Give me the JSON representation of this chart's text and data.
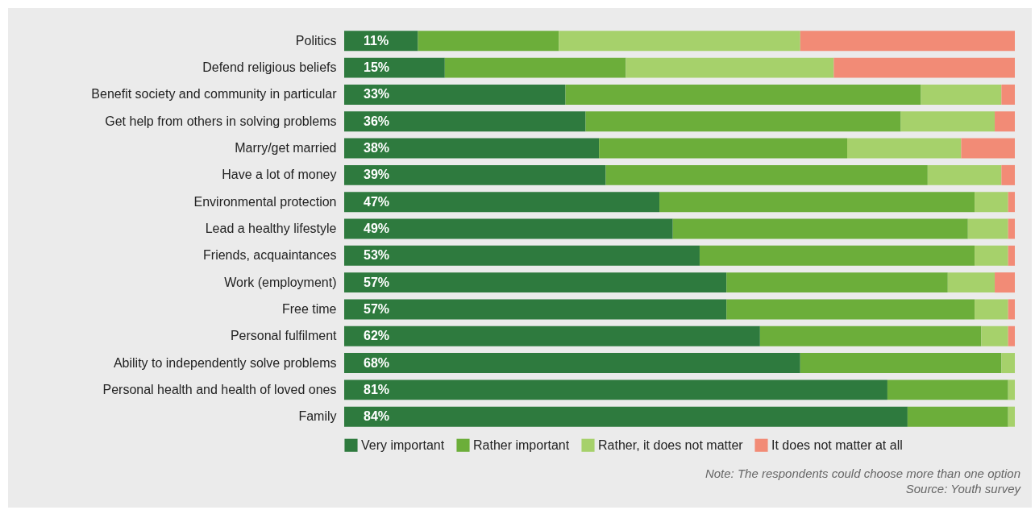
{
  "chart_data": {
    "type": "bar",
    "orientation": "horizontal",
    "stacked": true,
    "legend": "bottom",
    "tick_labels": "y",
    "xlim": [
      0,
      100
    ],
    "categories": [
      "Politics",
      "Defend religious beliefs",
      "Benefit society and community in particular",
      "Get help from others in solving problems",
      "Marry/get married",
      "Have a lot of money",
      "Environmental protection",
      "Lead a healthy lifestyle",
      "Friends, acquaintances",
      "Work (employment)",
      "Free time",
      "Personal fulfilment",
      "Ability to independently solve problems",
      "Personal health and health of loved ones",
      "Family"
    ],
    "series": [
      {
        "name": "Very important",
        "color": "#2e7a3e",
        "values": [
          11,
          15,
          33,
          36,
          38,
          39,
          47,
          49,
          53,
          57,
          57,
          62,
          68,
          81,
          84
        ],
        "value_labels": [
          "11%",
          "15%",
          "33%",
          "36%",
          "38%",
          "39%",
          "47%",
          "49%",
          "53%",
          "57%",
          "57%",
          "62%",
          "68%",
          "81%",
          "84%"
        ]
      },
      {
        "name": "Rather important",
        "color": "#6cae3a",
        "values": [
          21,
          27,
          53,
          47,
          37,
          48,
          47,
          44,
          41,
          33,
          37,
          33,
          30,
          18,
          15
        ]
      },
      {
        "name": "Rather, it does not matter",
        "color": "#a6d16b",
        "values": [
          36,
          31,
          12,
          14,
          17,
          11,
          5,
          6,
          5,
          7,
          5,
          4,
          2,
          1,
          1
        ]
      },
      {
        "name": "It does not matter at all",
        "color": "#f28b76",
        "values": [
          32,
          27,
          2,
          3,
          8,
          2,
          1,
          1,
          1,
          3,
          1,
          1,
          0,
          0,
          0
        ]
      }
    ],
    "annotations": [
      "Note: The respondents could choose more than one option",
      "Source: Youth survey"
    ]
  }
}
